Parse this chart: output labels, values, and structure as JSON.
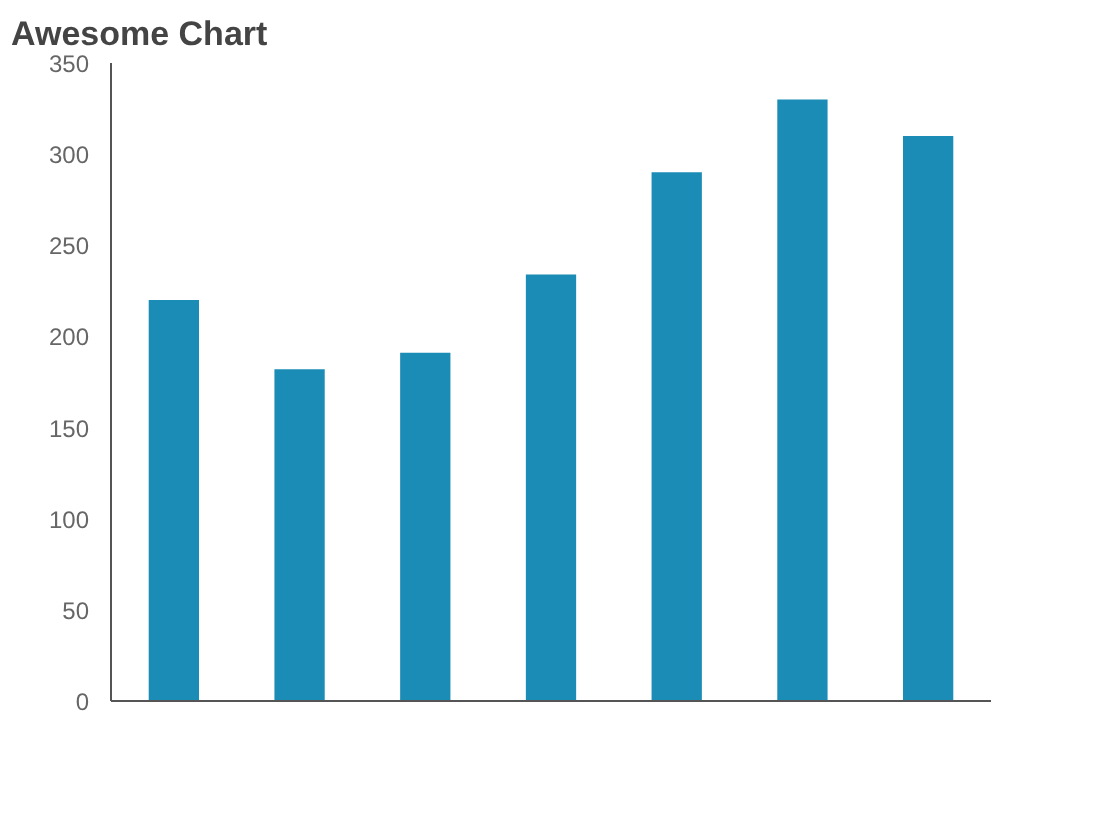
{
  "chart_data": {
    "type": "bar",
    "title": "Awesome Chart",
    "categories": [
      null,
      null,
      null,
      null,
      null,
      null,
      null
    ],
    "values": [
      220,
      182,
      191,
      234,
      290,
      330,
      310
    ],
    "color": "#1a8cb5",
    "ylim": [
      0,
      350
    ],
    "yticks": [
      0,
      50,
      100,
      150,
      200,
      250,
      300,
      350
    ],
    "grid": false,
    "tick_labels": "y"
  }
}
